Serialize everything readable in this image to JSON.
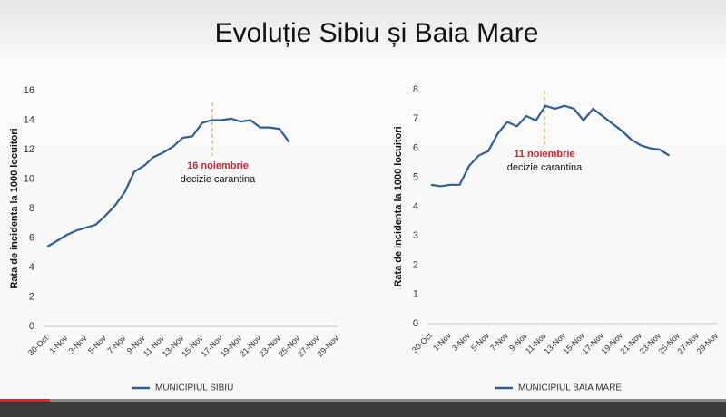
{
  "title": "Evoluție Sibiu și Baia Mare",
  "chart_data": [
    {
      "type": "line",
      "ylabel": "Rata de incidenta la 1000 locuitori",
      "categories": [
        "30-Oct",
        null,
        "1-Nov",
        null,
        "3-Nov",
        null,
        "5-Nov",
        null,
        "7-Nov",
        null,
        "9-Nov",
        null,
        "11-Nov",
        null,
        "13-Nov",
        null,
        "15-Nov",
        null,
        "17-Nov",
        null,
        "19-Nov",
        null,
        "21-Nov",
        null,
        "23-Nov",
        null,
        "25-Nov",
        null,
        "27-Nov",
        null,
        "29-Nov"
      ],
      "series": [
        {
          "name": "MUNICIPIUL SIBIU",
          "color": "#2e5d9e",
          "values": [
            5.4,
            5.8,
            6.2,
            6.5,
            6.7,
            6.9,
            7.5,
            8.2,
            9.1,
            10.5,
            10.9,
            11.5,
            11.8,
            12.2,
            12.8,
            12.9,
            13.8,
            14.0,
            14.0,
            14.1,
            13.9,
            14.0,
            13.5,
            13.5,
            13.4,
            12.5,
            null,
            null,
            null,
            null,
            null
          ]
        }
      ],
      "ylim": [
        0,
        16
      ],
      "yticks": [
        0,
        2,
        4,
        6,
        8,
        10,
        12,
        14,
        16
      ],
      "annotation": {
        "title": "16 noiembrie",
        "text": "decizie carantina"
      },
      "legend": "bottom"
    },
    {
      "type": "line",
      "ylabel": "Rata de incidenta la 1000 locuitori",
      "categories": [
        "30-Oct",
        null,
        "1-Nov",
        null,
        "3-Nov",
        null,
        "5-Nov",
        null,
        "7-Nov",
        null,
        "9-Nov",
        null,
        "11-Nov",
        null,
        "13-Nov",
        null,
        "15-Nov",
        null,
        "17-Nov",
        null,
        "19-Nov",
        null,
        "21-Nov",
        null,
        "23-Nov",
        null,
        "25-Nov",
        null,
        "27-Nov",
        null,
        "29-Nov"
      ],
      "series": [
        {
          "name": "MUNICIPIUL BAIA MARE",
          "color": "#2e5d9e",
          "values": [
            4.75,
            4.7,
            4.75,
            4.75,
            5.4,
            5.75,
            5.9,
            6.5,
            6.9,
            6.75,
            7.1,
            6.95,
            7.45,
            7.35,
            7.45,
            7.35,
            6.95,
            7.35,
            7.1,
            6.85,
            6.6,
            6.3,
            6.1,
            6.0,
            5.95,
            5.75,
            null,
            null,
            null,
            null,
            null
          ]
        }
      ],
      "ylim": [
        0,
        8
      ],
      "yticks": [
        0,
        1,
        2,
        3,
        4,
        5,
        6,
        7,
        8
      ],
      "annotation": {
        "title": "11 noiembrie",
        "text": "decizie carantina"
      },
      "legend": "bottom"
    }
  ]
}
